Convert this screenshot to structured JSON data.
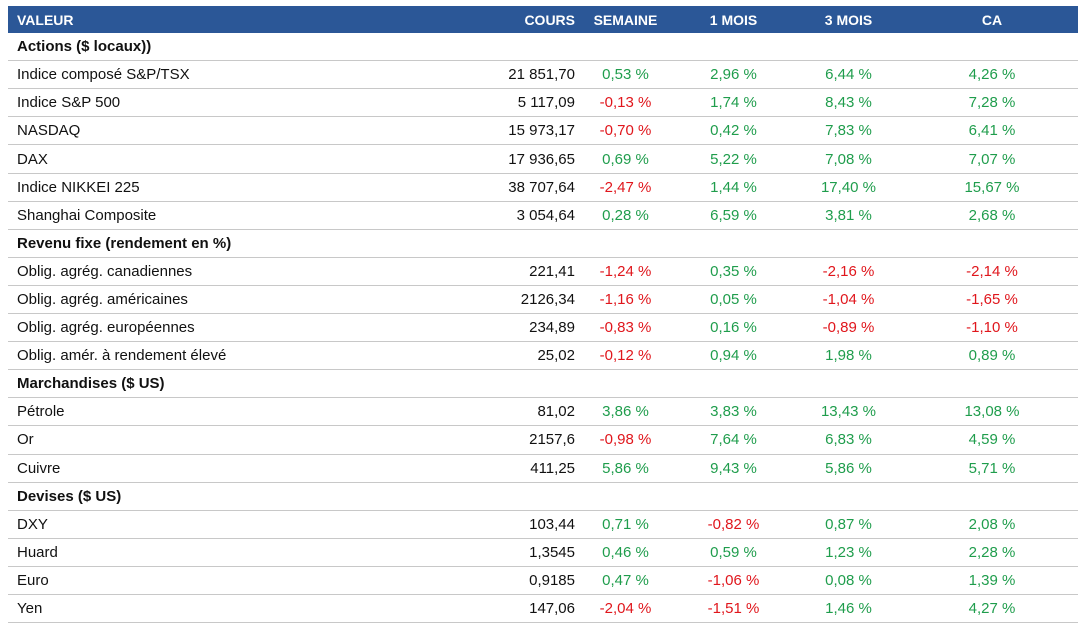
{
  "table": {
    "header": [
      "VALEUR",
      "COURS",
      "SEMAINE",
      "1 MOIS",
      "3 MOIS",
      "CA"
    ],
    "sections": [
      {
        "title": "Actions ($ locaux))",
        "rows": [
          [
            "Indice composé S&P/TSX",
            "21 851,70",
            "0,53 %",
            "2,96 %",
            "6,44 %",
            "4,26 %"
          ],
          [
            "Indice S&P 500",
            "5 117,09",
            "-0,13 %",
            "1,74 %",
            "8,43 %",
            "7,28 %"
          ],
          [
            "NASDAQ",
            "15 973,17",
            "-0,70 %",
            "0,42 %",
            "7,83 %",
            "6,41 %"
          ],
          [
            "DAX",
            "17 936,65",
            "0,69 %",
            "5,22 %",
            "7,08 %",
            "7,07 %"
          ],
          [
            "Indice NIKKEI 225",
            "38 707,64",
            "-2,47 %",
            "1,44 %",
            "17,40 %",
            "15,67 %"
          ],
          [
            "Shanghai Composite",
            "3 054,64",
            "0,28 %",
            "6,59 %",
            "3,81 %",
            "2,68 %"
          ]
        ]
      },
      {
        "title": "Revenu fixe (rendement en %)",
        "rows": [
          [
            "Oblig. agrég. canadiennes",
            "221,41",
            "-1,24 %",
            "0,35 %",
            "-2,16 %",
            "-2,14 %"
          ],
          [
            "Oblig. agrég. américaines",
            "2126,34",
            "-1,16 %",
            "0,05 %",
            "-1,04 %",
            "-1,65 %"
          ],
          [
            "Oblig. agrég. européennes",
            "234,89",
            "-0,83 %",
            "0,16 %",
            "-0,89 %",
            "-1,10 %"
          ],
          [
            "Oblig. amér. à rendement élevé",
            "25,02",
            "-0,12 %",
            "0,94 %",
            "1,98 %",
            "0,89 %"
          ]
        ]
      },
      {
        "title": "Marchandises ($ US)",
        "rows": [
          [
            "Pétrole",
            "81,02",
            "3,86 %",
            "3,83 %",
            "13,43 %",
            "13,08 %"
          ],
          [
            "Or",
            "2157,6",
            "-0,98 %",
            "7,64 %",
            "6,83 %",
            "4,59 %"
          ],
          [
            "Cuivre",
            "411,25",
            "5,86 %",
            "9,43 %",
            "5,86 %",
            "5,71 %"
          ]
        ]
      },
      {
        "title": "Devises ($ US)",
        "rows": [
          [
            "DXY",
            "103,44",
            "0,71 %",
            "-0,82 %",
            "0,87 %",
            "2,08 %"
          ],
          [
            "Huard",
            "1,3545",
            "0,46 %",
            "0,59 %",
            "1,23 %",
            "2,28 %"
          ],
          [
            "Euro",
            "0,9185",
            "0,47 %",
            "-1,06 %",
            "0,08 %",
            "1,39 %"
          ],
          [
            "Yen",
            "147,06",
            "-2,04 %",
            "-1,51 %",
            "1,46 %",
            "4,27 %"
          ]
        ]
      }
    ]
  }
}
